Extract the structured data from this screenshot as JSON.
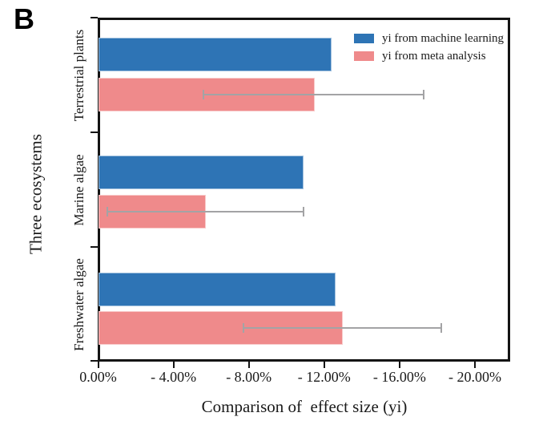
{
  "panel_label": "B",
  "chart_data": {
    "type": "bar",
    "orientation": "horizontal",
    "title": "",
    "xlabel": "Comparison of  effect size (yi)",
    "ylabel": "Three ecosystems",
    "categories": [
      "Terrestrial plants",
      "Marine algae",
      "Freshwater algae"
    ],
    "x_tick_labels": [
      "0.00%",
      "- 4.00%",
      "- 8.00%",
      "- 12.00%",
      "- 16.00%",
      "- 20.00%"
    ],
    "x_tick_values": [
      0,
      -4,
      -8,
      -12,
      -16,
      -20
    ],
    "xlim": [
      0,
      -21.85
    ],
    "grid": false,
    "legend_position": "top-right-inside",
    "series": [
      {
        "name": "yi from machine learning",
        "color": "#2E74B5",
        "values": [
          -12.4,
          -10.9,
          -12.6
        ]
      },
      {
        "name": "yi from meta analysis",
        "color": "#EF8A8B",
        "values": [
          -11.5,
          -5.7,
          -13.0
        ],
        "error_low": [
          -5.6,
          -0.5,
          -7.7
        ],
        "error_high": [
          -17.3,
          -10.9,
          -18.2
        ]
      }
    ],
    "error_bar_color": "#A3A3A5",
    "axis_color": "#141414"
  }
}
